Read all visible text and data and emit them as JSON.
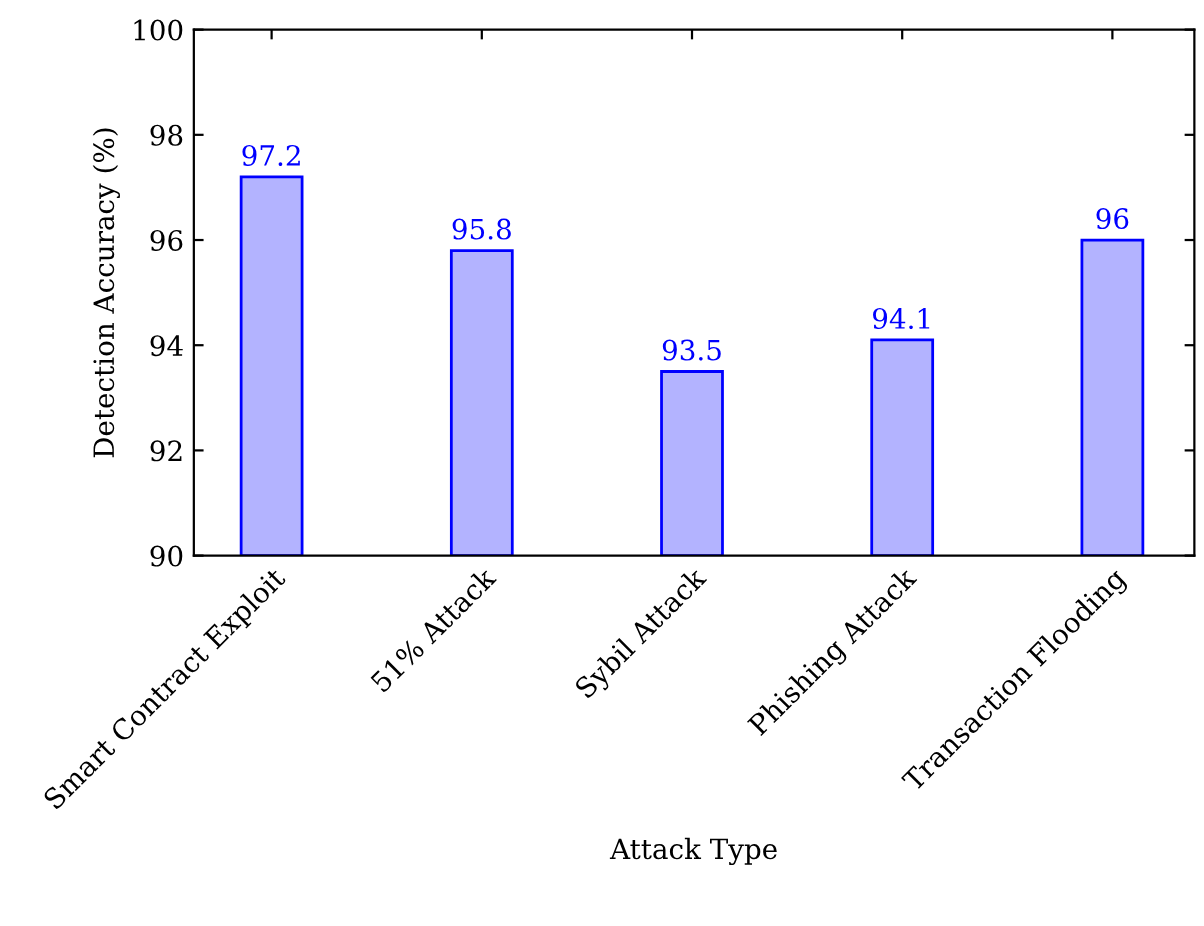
{
  "chart_data": {
    "type": "bar",
    "categories": [
      "Smart Contract Exploit",
      "51% Attack",
      "Sybil Attack",
      "Phishing Attack",
      "Transaction Flooding"
    ],
    "values": [
      97.2,
      95.8,
      93.5,
      94.1,
      96
    ],
    "color": "#b3b3ff",
    "xlabel": "Attack Type",
    "ylabel": "Detection Accuracy (%)",
    "ylim": [
      90,
      100
    ],
    "yticks": [
      90,
      92,
      94,
      96,
      98,
      100
    ],
    "data_labels": true,
    "grid": false,
    "legend": false
  }
}
